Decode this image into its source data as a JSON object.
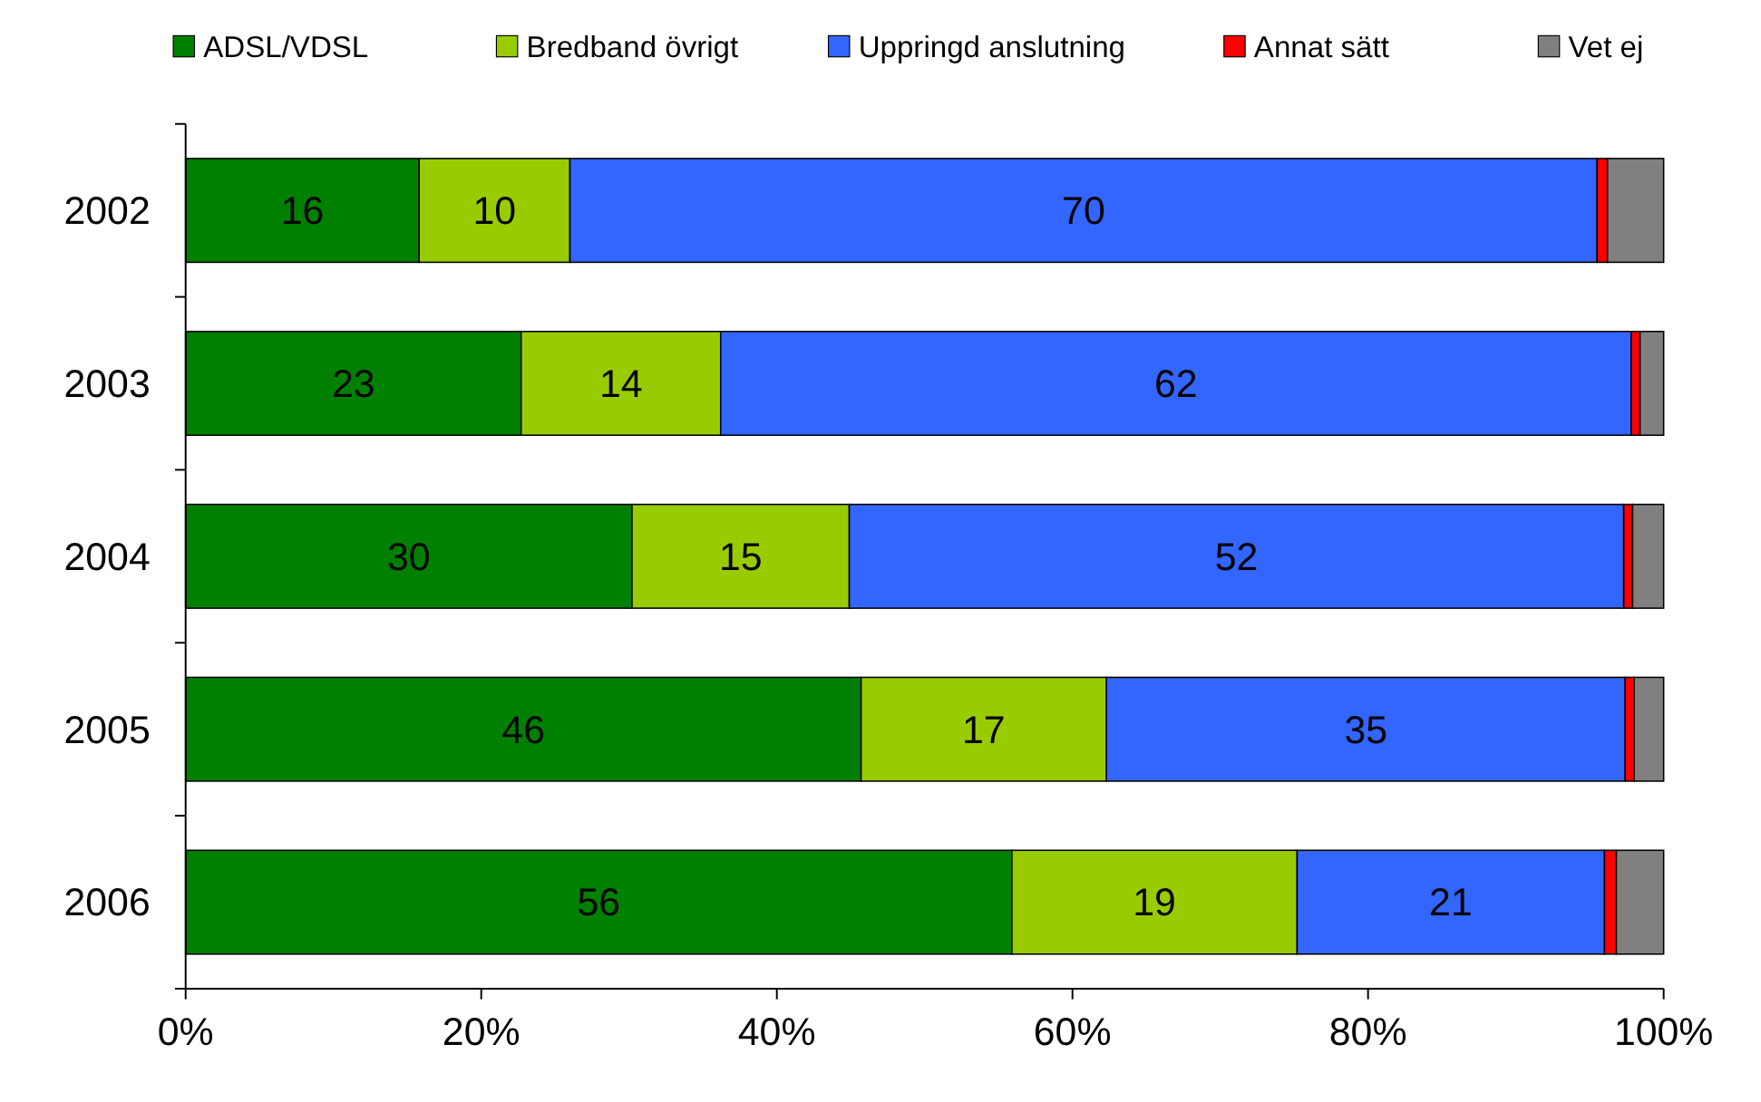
{
  "chart_data": {
    "type": "bar",
    "orientation": "horizontal",
    "stacked": true,
    "legend": "top",
    "categories": [
      "2002",
      "2003",
      "2004",
      "2005",
      "2006"
    ],
    "xlim": [
      0,
      100
    ],
    "xticks": [
      {
        "value": 0,
        "label": "0%"
      },
      {
        "value": 20,
        "label": "20%"
      },
      {
        "value": 40,
        "label": "40%"
      },
      {
        "value": 60,
        "label": "60%"
      },
      {
        "value": 80,
        "label": "80%"
      },
      {
        "value": 100,
        "label": "100%"
      }
    ],
    "series": [
      {
        "name": "ADSL/VDSL",
        "color": "#008000",
        "values": [
          15.8,
          22.7,
          30.2,
          45.7,
          55.9
        ],
        "value_labels": [
          "16",
          "23",
          "30",
          "46",
          "56"
        ]
      },
      {
        "name": "Bredband övrigt",
        "color": "#99cc00",
        "values": [
          10.2,
          13.5,
          14.7,
          16.6,
          19.3
        ],
        "value_labels": [
          "10",
          "14",
          "15",
          "17",
          "19"
        ]
      },
      {
        "name": "Uppringd anslutning",
        "color": "#3366ff",
        "values": [
          69.5,
          61.6,
          52.4,
          35.1,
          20.8
        ],
        "value_labels": [
          "70",
          "62",
          "52",
          "35",
          "21"
        ]
      },
      {
        "name": "Annat sätt",
        "color": "#ff0000",
        "values": [
          0.7,
          0.6,
          0.6,
          0.6,
          0.8
        ]
      },
      {
        "name": "Vet ej",
        "color": "#808080",
        "values": [
          3.8,
          1.6,
          2.1,
          2.0,
          3.2
        ]
      }
    ]
  }
}
